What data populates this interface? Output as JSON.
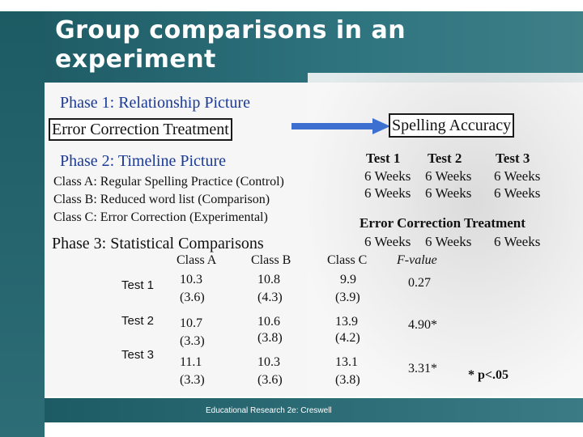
{
  "title": "Group comparisons in an experiment",
  "phase1": {
    "label": "Phase 1: Relationship Picture",
    "left_box": "Error Correction Treatment",
    "right_box": "Spelling Accuracy"
  },
  "phase2": {
    "label": "Phase 2: Timeline Picture",
    "classes": [
      "Class A: Regular Spelling Practice (Control)",
      "Class B: Reduced word list (Comparison)",
      "Class C: Error Correction (Experimental)"
    ],
    "tests": [
      "Test 1",
      "Test 2",
      "Test 3"
    ],
    "weeks_row1": [
      "6 Weeks",
      "6 Weeks",
      "6 Weeks"
    ],
    "weeks_row2": [
      "6 Weeks",
      "6 Weeks",
      "6 Weeks"
    ],
    "treatment": "Error Correction Treatment",
    "weeks_row3": [
      "6 Weeks",
      "6 Weeks",
      "6 Weeks"
    ]
  },
  "phase3": {
    "label": "Phase 3: Statistical Comparisons",
    "headers": [
      "Class A",
      "Class B",
      "Class C",
      "F-value"
    ],
    "rows": [
      {
        "label": "Test 1",
        "a": [
          "10.3",
          "(3.6)"
        ],
        "b": [
          "10.8",
          "(4.3)"
        ],
        "c": [
          "9.9",
          "(3.9)"
        ],
        "f": "0.27"
      },
      {
        "label": "Test 2",
        "a": [
          "10.7",
          "(3.3)"
        ],
        "b": [
          "10.6",
          "(3.8)"
        ],
        "c": [
          "13.9",
          "(4.2)"
        ],
        "f": "4.90*"
      },
      {
        "label": "Test 3",
        "a": [
          "11.1",
          "(3.3)"
        ],
        "b": [
          "10.3",
          "(3.6)"
        ],
        "c": [
          "13.1",
          "(3.8)"
        ],
        "f": "3.31*"
      }
    ],
    "note": "* p<.05"
  },
  "footer": "Educational Research 2e: Creswell",
  "colors": {
    "band": "#2f7580",
    "phase_text": "#1a3a99",
    "arrow": "#3d6fd1"
  }
}
